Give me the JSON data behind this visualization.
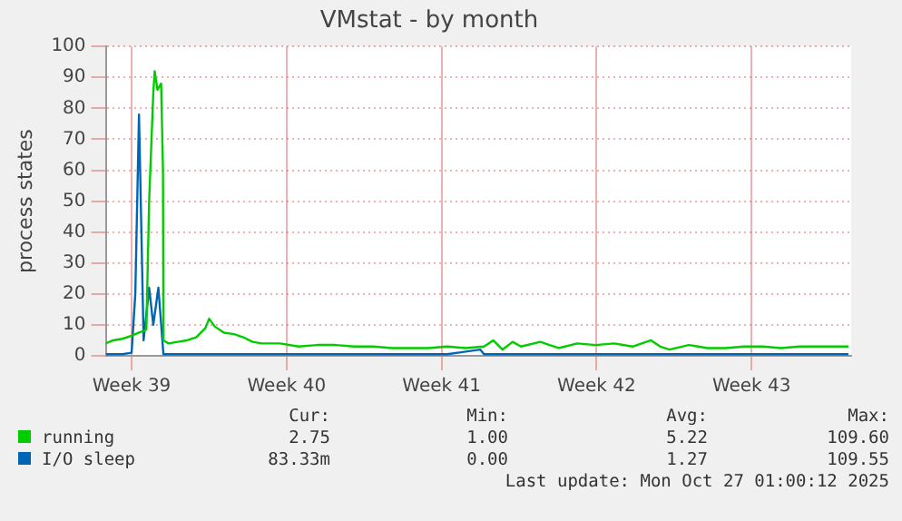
{
  "chart_data": {
    "type": "line",
    "title": "VMstat - by month",
    "ylabel": "process states",
    "xlim": [
      "2025-09-20T20:00",
      "2025-10-24T12:00"
    ],
    "xticks": [
      {
        "value": "2025-09-22",
        "label": "Week 39"
      },
      {
        "value": "2025-09-29",
        "label": "Week 40"
      },
      {
        "value": "2025-10-06",
        "label": "Week 41"
      },
      {
        "value": "2025-10-13",
        "label": "Week 42"
      },
      {
        "value": "2025-10-20",
        "label": "Week 43"
      }
    ],
    "ylim": [
      0,
      100
    ],
    "yticks": [
      0,
      10,
      20,
      30,
      40,
      50,
      60,
      70,
      80,
      90,
      100
    ],
    "grid": true,
    "legend": "bottom",
    "marker": "none",
    "line_style": "solid",
    "series": [
      {
        "name": "running",
        "color": "#00cc00",
        "x": [
          "2025-09-20T20:00",
          "2025-09-21T04:00",
          "2025-09-21T14:00",
          "2025-09-22T00:00",
          "2025-09-22T08:00",
          "2025-09-22T13:00",
          "2025-09-22T16:00",
          "2025-09-22T19:00",
          "2025-09-22T23:30",
          "2025-09-23T01:00",
          "2025-09-23T04:00",
          "2025-09-23T08:00",
          "2025-09-23T10:00",
          "2025-09-23T10:30",
          "2025-09-23T16:00",
          "2025-09-24T02:00",
          "2025-09-24T12:00",
          "2025-09-24T22:00",
          "2025-09-25T08:00",
          "2025-09-25T12:00",
          "2025-09-25T18:00",
          "2025-09-26T04:00",
          "2025-09-26T15:00",
          "2025-09-27T01:00",
          "2025-09-27T11:00",
          "2025-09-27T21:00",
          "2025-09-28T17:00",
          "2025-09-29T13:00",
          "2025-09-30T09:00",
          "2025-10-01T05:00",
          "2025-10-02T01:00",
          "2025-10-02T22:00",
          "2025-10-03T18:00",
          "2025-10-04T14:00",
          "2025-10-05T10:00",
          "2025-10-06T06:00",
          "2025-10-07T02:00",
          "2025-10-07T22:00",
          "2025-10-08T08:00",
          "2025-10-08T18:00",
          "2025-10-09T05:00",
          "2025-10-09T14:00",
          "2025-10-10T11:00",
          "2025-10-10T21:00",
          "2025-10-11T07:00",
          "2025-10-12T03:00",
          "2025-10-12T23:00",
          "2025-10-13T19:00",
          "2025-10-14T15:00",
          "2025-10-15T11:00",
          "2025-10-15T21:00",
          "2025-10-16T07:00",
          "2025-10-17T04:00",
          "2025-10-18T00:00",
          "2025-10-18T20:00",
          "2025-10-19T16:00",
          "2025-10-20T12:00",
          "2025-10-21T08:00",
          "2025-10-22T04:00",
          "2025-10-23T00:00",
          "2025-10-24T09:00"
        ],
        "values": [
          4,
          5,
          5.5,
          6.5,
          7.5,
          8,
          8.5,
          50,
          85,
          92,
          86,
          88,
          60,
          5,
          4,
          4.5,
          5,
          6,
          9,
          12,
          9.5,
          7.5,
          7,
          6,
          4.5,
          4,
          4,
          3,
          3.5,
          3.5,
          3,
          3,
          2.5,
          2.5,
          2.5,
          3,
          2.5,
          3,
          5,
          2,
          4.5,
          3,
          4.5,
          3.5,
          2.5,
          4,
          3.5,
          4,
          3,
          5,
          3,
          2,
          3.5,
          2.5,
          2.5,
          3,
          3,
          2.5,
          3,
          3,
          3
        ]
      },
      {
        "name": "I/O sleep",
        "color": "#0066b3",
        "x": [
          "2025-09-20T20:00",
          "2025-09-21T14:00",
          "2025-09-22T00:00",
          "2025-09-22T04:00",
          "2025-09-22T08:00",
          "2025-09-22T13:00",
          "2025-09-22T19:00",
          "2025-09-22T23:30",
          "2025-09-23T05:00",
          "2025-09-23T10:30",
          "2025-09-23T16:00",
          "2025-09-26T04:00",
          "2025-10-02T01:00",
          "2025-10-06T06:00",
          "2025-10-07T18:00",
          "2025-10-07T22:00",
          "2025-10-10T11:00",
          "2025-10-14T15:00",
          "2025-10-18T20:00",
          "2025-10-24T09:00"
        ],
        "values": [
          0.5,
          0.5,
          1,
          20,
          78,
          5,
          22,
          10,
          22,
          0.5,
          0.5,
          0.5,
          0.5,
          0.5,
          2,
          0.5,
          0.5,
          0.5,
          0.5,
          0.5
        ]
      }
    ],
    "annotations": [
      "Cur:",
      "Min:",
      "Avg:",
      "Max:",
      "2.75",
      "1.00",
      "5.22",
      "109.60",
      "83.33m",
      "0.00",
      "1.27",
      "109.55",
      "Last update: Mon Oct 27 01:00:12 2025"
    ]
  }
}
